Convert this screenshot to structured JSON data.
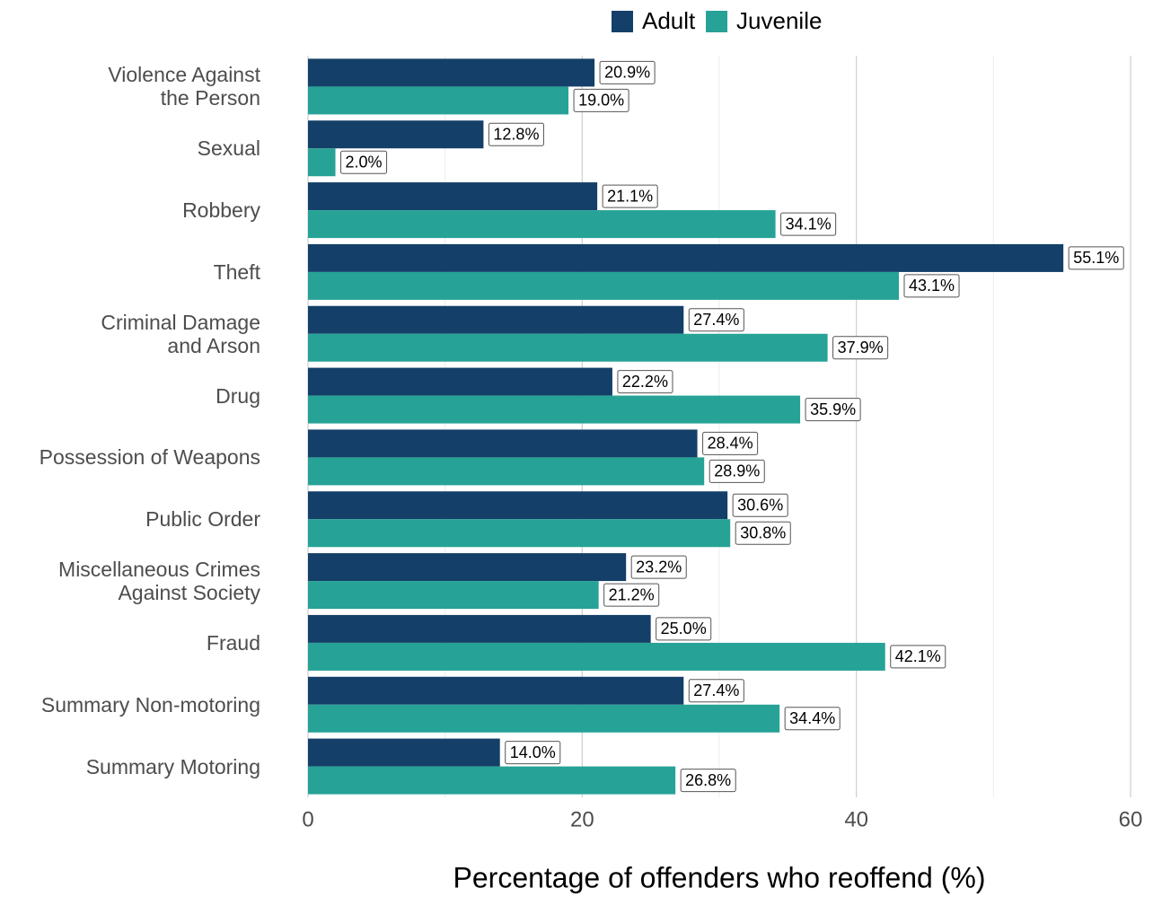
{
  "chart_data": {
    "type": "bar",
    "orientation": "horizontal",
    "x_label": "Percentage of offenders who reoffend (%)",
    "categories": [
      "Violence Against\nthe Person",
      "Sexual",
      "Robbery",
      "Theft",
      "Criminal Damage\nand Arson",
      "Drug",
      "Possession of Weapons",
      "Public Order",
      "Miscellaneous Crimes\nAgainst Society",
      "Fraud",
      "Summary Non-motoring",
      "Summary Motoring"
    ],
    "series": [
      {
        "name": "Adult",
        "color": "#143f68",
        "values": [
          20.9,
          12.8,
          21.1,
          55.1,
          27.4,
          22.2,
          28.4,
          30.6,
          23.2,
          25.0,
          27.4,
          14.0
        ],
        "value_labels": [
          "20.9%",
          "12.8%",
          "21.1%",
          "55.1%",
          "27.4%",
          "22.2%",
          "28.4%",
          "30.6%",
          "23.2%",
          "25.0%",
          "27.4%",
          "14.0%"
        ]
      },
      {
        "name": "Juvenile",
        "color": "#27a296",
        "values": [
          19.0,
          2.0,
          34.1,
          43.1,
          37.9,
          35.9,
          28.9,
          30.8,
          21.2,
          42.1,
          34.4,
          26.8
        ],
        "value_labels": [
          "19.0%",
          "2.0%",
          "34.1%",
          "43.1%",
          "37.9%",
          "35.9%",
          "28.9%",
          "30.8%",
          "21.2%",
          "42.1%",
          "34.4%",
          "26.8%"
        ]
      }
    ],
    "xlim": [
      0,
      60
    ],
    "xticks": [
      0,
      20,
      40,
      60
    ],
    "x_minor_grid": [
      10,
      30,
      50
    ],
    "grid": true,
    "legend": "top"
  }
}
